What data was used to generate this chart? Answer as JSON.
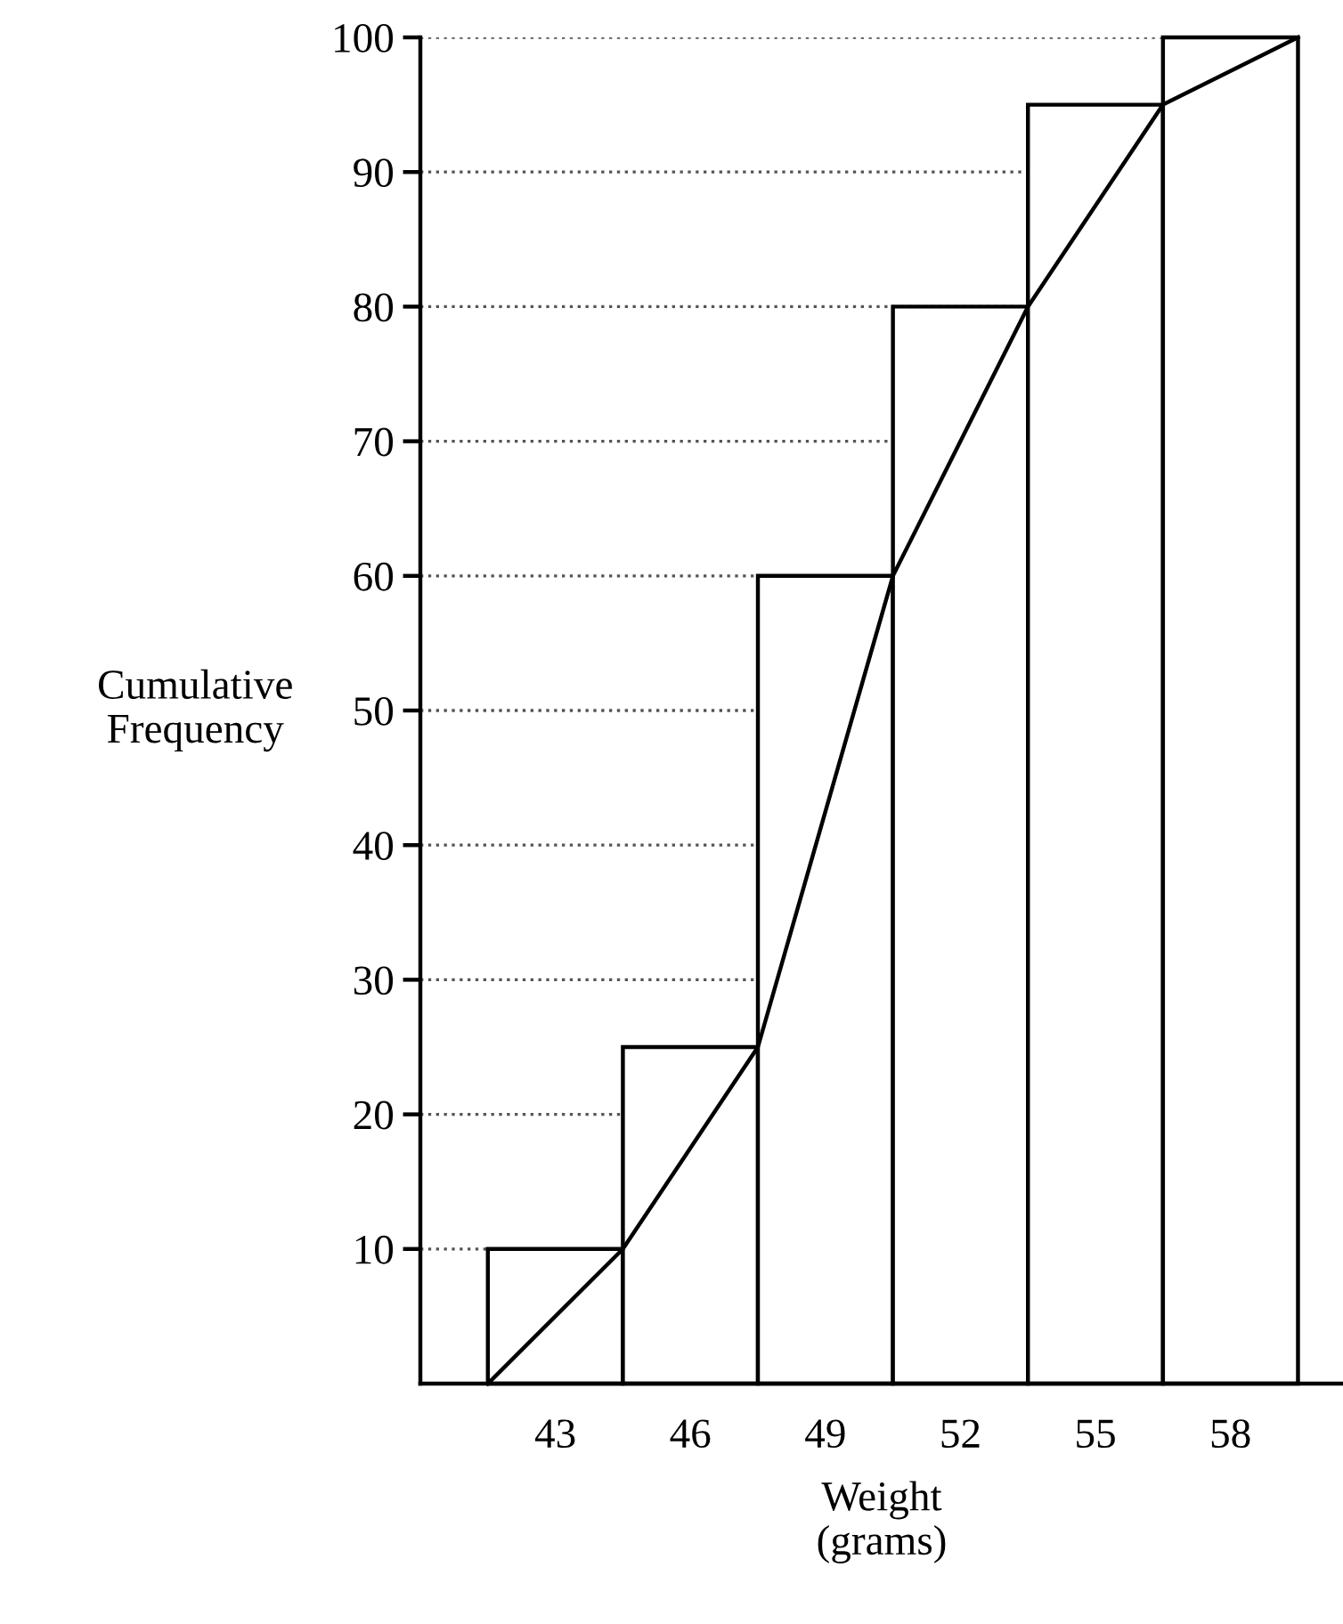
{
  "chart_data": {
    "type": "histogram",
    "xlabel": "Weight\n(grams)",
    "ylabel": "Cumulative\nFrequency",
    "bins": [
      41.5,
      44.5,
      47.5,
      50.5,
      53.5,
      56.5,
      59.5
    ],
    "values": [
      10,
      25,
      60,
      80,
      95,
      100
    ],
    "color": "#ffffff",
    "series": [
      {
        "type": "line",
        "color": "#000000",
        "x": [
          41.5,
          44.5,
          47.5,
          50.5,
          53.5,
          56.5,
          59.5
        ],
        "values": [
          0,
          10,
          25,
          60,
          80,
          95,
          100
        ]
      }
    ],
    "xlim": [
      40,
      60.5
    ],
    "xticks": [
      43,
      46,
      49,
      52,
      55,
      58
    ],
    "ylim": [
      0,
      100
    ],
    "yticks": [
      10,
      20,
      30,
      40,
      50,
      60,
      70,
      80,
      90,
      100
    ],
    "grid": "y",
    "marker": "none",
    "line_style": "solid"
  }
}
